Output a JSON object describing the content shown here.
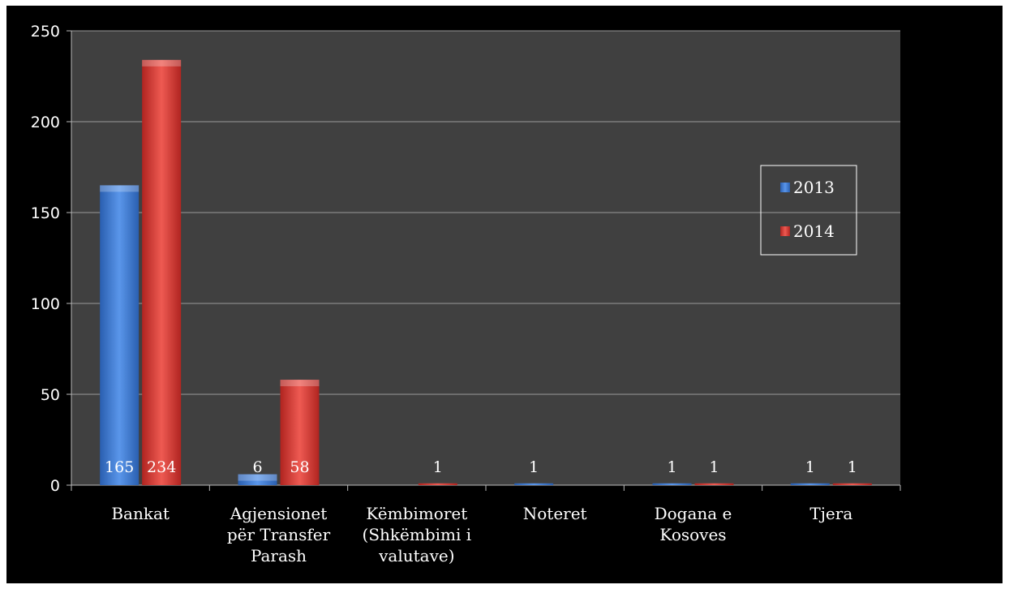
{
  "chart_data": {
    "type": "bar",
    "categories": [
      [
        "Bankat"
      ],
      [
        "Agjensionet",
        "për Transfer",
        "Parash"
      ],
      [
        "Këmbimoret",
        "(Shkëmbimi i",
        "valutave)"
      ],
      [
        "Noteret"
      ],
      [
        "Dogana e",
        "Kosoves"
      ],
      [
        "Tjera"
      ]
    ],
    "series": [
      {
        "name": "2013",
        "values": [
          165,
          6,
          null,
          1,
          1,
          1
        ],
        "labels": [
          "165",
          "6",
          "",
          "1",
          "1",
          "1"
        ],
        "color": "#3a78d4"
      },
      {
        "name": "2014",
        "values": [
          234,
          58,
          1,
          null,
          1,
          1
        ],
        "labels": [
          "234",
          "58",
          "1",
          "",
          "1",
          "1"
        ],
        "color": "#d8352f"
      }
    ],
    "ylim": [
      0,
      250
    ],
    "yticks": [
      "0",
      "50",
      "100",
      "150",
      "200",
      "250"
    ],
    "grid": true,
    "legend": "right",
    "title": "",
    "xlabel": "",
    "ylabel": ""
  },
  "colors": {
    "background": "#000000",
    "plot": "#404040",
    "grid": "#9a9a9a",
    "text": "#ffffff"
  }
}
